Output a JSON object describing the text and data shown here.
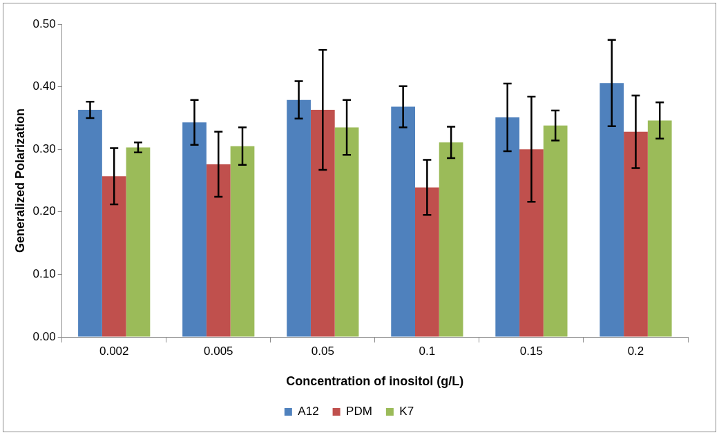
{
  "chart_data": {
    "type": "bar",
    "xlabel": "Concentration of inositol (g/L)",
    "ylabel": "Generalized Polarization",
    "categories": [
      "0.002",
      "0.005",
      "0.05",
      "0.1",
      "0.15",
      "0.2"
    ],
    "series": [
      {
        "name": "A12",
        "color": "#4f81bd",
        "values": [
          0.363,
          0.343,
          0.379,
          0.368,
          0.351,
          0.406
        ],
        "errors": [
          0.013,
          0.036,
          0.03,
          0.033,
          0.054,
          0.069
        ]
      },
      {
        "name": "PDM",
        "color": "#c0504d",
        "values": [
          0.257,
          0.276,
          0.363,
          0.239,
          0.3,
          0.328
        ],
        "errors": [
          0.045,
          0.052,
          0.096,
          0.044,
          0.084,
          0.058
        ]
      },
      {
        "name": "K7",
        "color": "#9bbb59",
        "values": [
          0.303,
          0.305,
          0.335,
          0.311,
          0.338,
          0.346
        ],
        "errors": [
          0.008,
          0.03,
          0.044,
          0.025,
          0.024,
          0.029
        ]
      }
    ],
    "ylim": [
      0,
      0.5
    ],
    "yticks": [
      {
        "value": 0,
        "label": "0.00"
      },
      {
        "value": 0.1,
        "label": "0.10"
      },
      {
        "value": 0.2,
        "label": "0.20"
      },
      {
        "value": 0.3,
        "label": "0.30"
      },
      {
        "value": 0.4,
        "label": "0.40"
      },
      {
        "value": 0.5,
        "label": "0.50"
      }
    ],
    "grid": false,
    "legend": "bottom"
  }
}
